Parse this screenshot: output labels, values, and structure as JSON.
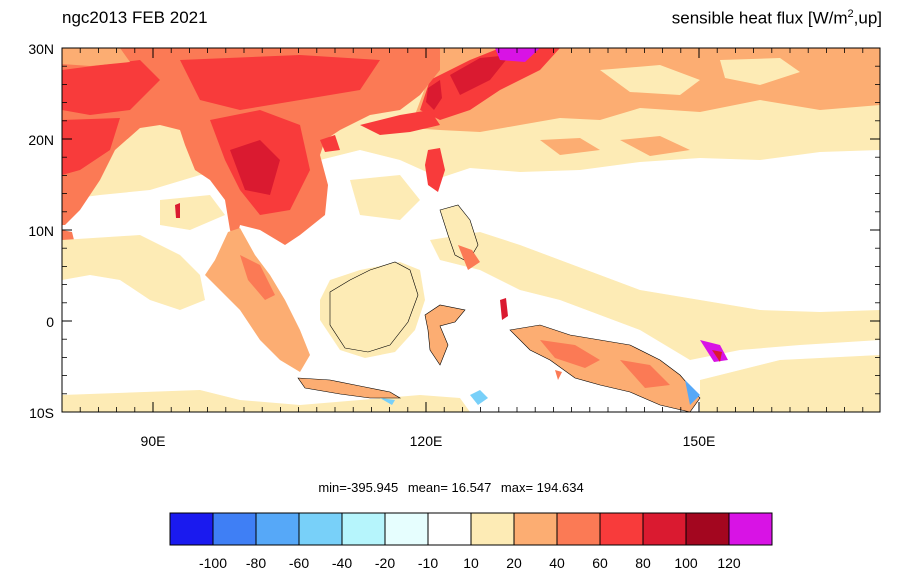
{
  "title_left": "ngc2013 FEB 2021",
  "title_right": {
    "text": "sensible heat flux [W/m",
    "sup": "2",
    "tail": ",up]"
  },
  "axes": {
    "lat_labels": [
      "30N",
      "20N",
      "10N",
      "0",
      "10S"
    ],
    "lon_labels": [
      "90E",
      "120E",
      "150E"
    ]
  },
  "stats": {
    "min": "min=-395.945",
    "mean": "mean=  16.547",
    "max": "max= 194.634"
  },
  "colorbar": {
    "colors": [
      "#1a1aef",
      "#3f7ff5",
      "#56a8f8",
      "#78d0f9",
      "#b6f5fc",
      "#e6fefe",
      "#ffffff",
      "#fdebb5",
      "#fcad72",
      "#fb7a55",
      "#f83b3b",
      "#da1a30",
      "#a3061f",
      "#d813e5"
    ],
    "labels": [
      "-100",
      "-80",
      "-60",
      "-40",
      "-20",
      "-10",
      "10",
      "20",
      "40",
      "60",
      "80",
      "100",
      "120"
    ]
  }
}
